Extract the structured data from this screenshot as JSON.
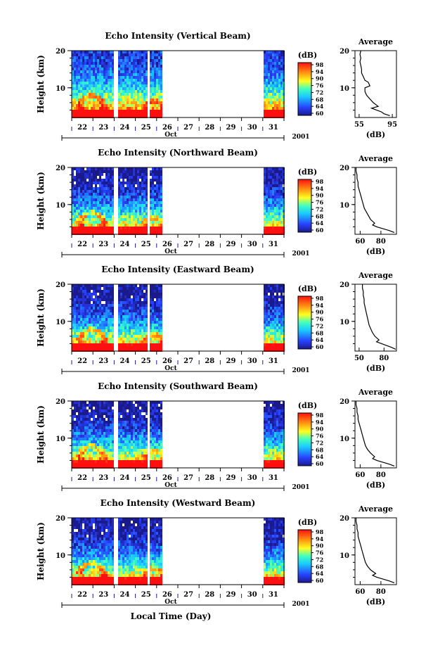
{
  "chart_data": {
    "type": "heatmap",
    "xlabel": "Local Time (Day)",
    "month_label": "Oct",
    "year_label": "2001",
    "ylabel": "Height (km)",
    "ylim": [
      2,
      20
    ],
    "y_ticks": [
      "10",
      "20"
    ],
    "x_ticks": [
      "22",
      "23",
      "24",
      "25",
      "26",
      "27",
      "28",
      "29",
      "30",
      "31"
    ],
    "xlim": [
      22,
      32
    ],
    "colorbar": {
      "unit": "(dB)",
      "ticks": [
        "98",
        "94",
        "90",
        "76",
        "72",
        "68",
        "64",
        "60"
      ]
    },
    "data_gaps": [
      [
        23.9,
        24.1
      ],
      [
        25.55,
        25.62
      ],
      [
        26.2,
        31.0
      ]
    ],
    "average_title": "Average",
    "average_xlabel": "(dB)",
    "panels": [
      {
        "title": "Echo Intensity (Vertical Beam)",
        "avg_xticks": [
          "55",
          "95"
        ],
        "avg_xlim": [
          50,
          100
        ],
        "avg_profile": [
          [
            92,
            2.5
          ],
          [
            85,
            3
          ],
          [
            82,
            3.5
          ],
          [
            76,
            4
          ],
          [
            70,
            4.5
          ],
          [
            78,
            5
          ],
          [
            72,
            6
          ],
          [
            68,
            7
          ],
          [
            64,
            8
          ],
          [
            62,
            9
          ],
          [
            62,
            10
          ],
          [
            68,
            10.5
          ],
          [
            66,
            11.5
          ],
          [
            62,
            12
          ],
          [
            60,
            13
          ],
          [
            58,
            14
          ],
          [
            58,
            15
          ],
          [
            57,
            16
          ],
          [
            56,
            17
          ],
          [
            57,
            18
          ],
          [
            56,
            19
          ],
          [
            57,
            20
          ]
        ]
      },
      {
        "title": "Echo Intensity (Northward Beam)",
        "avg_xticks": [
          "60",
          "80"
        ],
        "avg_xlim": [
          55,
          95
        ],
        "avg_profile": [
          [
            93,
            2.5
          ],
          [
            88,
            3
          ],
          [
            82,
            3.5
          ],
          [
            76,
            4
          ],
          [
            72,
            4.5
          ],
          [
            74,
            5
          ],
          [
            70,
            6
          ],
          [
            68,
            7
          ],
          [
            66,
            8
          ],
          [
            64,
            9
          ],
          [
            63,
            10
          ],
          [
            62,
            11
          ],
          [
            61,
            12
          ],
          [
            60,
            13
          ],
          [
            59,
            14
          ],
          [
            58,
            15
          ],
          [
            58,
            16
          ],
          [
            57,
            17
          ],
          [
            57,
            18
          ],
          [
            56,
            19
          ],
          [
            56,
            20
          ]
        ]
      },
      {
        "title": "Echo Intensity (Eastward Beam)",
        "avg_xticks": [
          "50",
          "80"
        ],
        "avg_xlim": [
          45,
          95
        ],
        "avg_profile": [
          [
            94,
            2.5
          ],
          [
            89,
            3
          ],
          [
            83,
            3.5
          ],
          [
            77,
            4
          ],
          [
            71,
            4.5
          ],
          [
            74,
            5
          ],
          [
            69,
            6
          ],
          [
            66,
            7
          ],
          [
            64,
            8
          ],
          [
            62,
            9
          ],
          [
            61,
            10
          ],
          [
            60,
            11
          ],
          [
            59,
            12
          ],
          [
            58,
            13
          ],
          [
            57,
            14
          ],
          [
            56,
            15
          ],
          [
            56,
            16
          ],
          [
            55,
            17
          ],
          [
            55,
            18
          ],
          [
            54,
            19
          ],
          [
            54,
            20
          ]
        ]
      },
      {
        "title": "Echo Intensity (Southward Beam)",
        "avg_xticks": [
          "60",
          "80"
        ],
        "avg_xlim": [
          55,
          95
        ],
        "avg_profile": [
          [
            93,
            2.5
          ],
          [
            88,
            3
          ],
          [
            82,
            3.5
          ],
          [
            76,
            4
          ],
          [
            72,
            4.5
          ],
          [
            74,
            5
          ],
          [
            70,
            6
          ],
          [
            67,
            7
          ],
          [
            65,
            8
          ],
          [
            64,
            9
          ],
          [
            63,
            10
          ],
          [
            62,
            11
          ],
          [
            61,
            12
          ],
          [
            60,
            13
          ],
          [
            59,
            14
          ],
          [
            58,
            15
          ],
          [
            58,
            16
          ],
          [
            57,
            17
          ],
          [
            57,
            18
          ],
          [
            56,
            19
          ],
          [
            56,
            20
          ]
        ]
      },
      {
        "title": "Echo Intensity (Westward Beam)",
        "avg_xticks": [
          "60",
          "80"
        ],
        "avg_xlim": [
          55,
          95
        ],
        "avg_profile": [
          [
            93,
            2.5
          ],
          [
            88,
            3
          ],
          [
            82,
            3.5
          ],
          [
            76,
            4
          ],
          [
            72,
            4.5
          ],
          [
            75,
            5
          ],
          [
            70,
            6
          ],
          [
            67,
            7
          ],
          [
            65,
            8
          ],
          [
            64,
            9
          ],
          [
            63,
            10
          ],
          [
            62,
            11
          ],
          [
            61,
            12
          ],
          [
            60,
            13
          ],
          [
            59,
            14
          ],
          [
            58,
            15
          ],
          [
            58,
            16
          ],
          [
            57,
            17
          ],
          [
            57,
            18
          ],
          [
            56,
            19
          ],
          [
            56,
            20
          ]
        ]
      }
    ]
  }
}
